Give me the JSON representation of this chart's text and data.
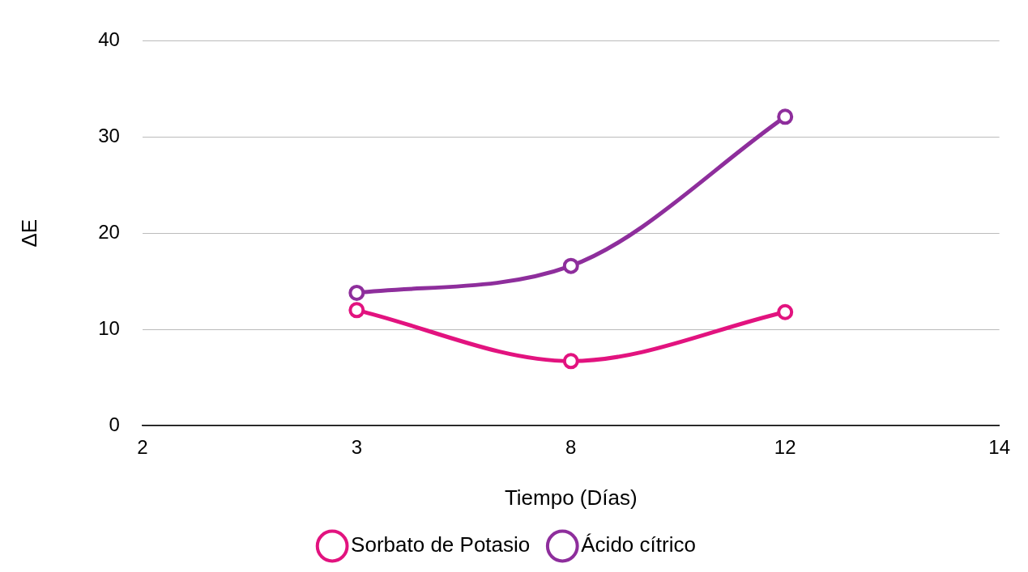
{
  "chart_data": {
    "type": "line",
    "xlabel": "Tiempo (Días)",
    "ylabel": "ΔE",
    "categories": [
      "2",
      "3",
      "8",
      "12",
      "14"
    ],
    "series": [
      {
        "name": "Sorbato de Potasio",
        "color": "#e2137f",
        "values": [
          null,
          12,
          6.7,
          11.8,
          null
        ]
      },
      {
        "name": "Ácido cítrico",
        "color": "#8e2e9c",
        "values": [
          null,
          13.8,
          16.6,
          32.1,
          null
        ]
      }
    ],
    "ylim": [
      0,
      40
    ],
    "yticks": [
      0,
      10,
      20,
      30,
      40
    ],
    "grid": "y",
    "legend": "bottom",
    "marker": "circle",
    "line_style": "solid"
  }
}
